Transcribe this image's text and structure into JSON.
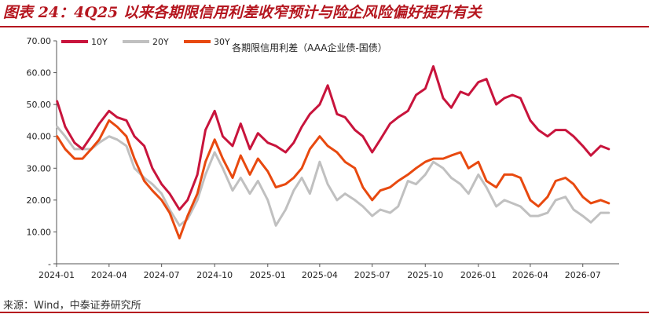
{
  "figure": {
    "title": "图表 24：4Q25 以来各期限信用利差收窄预计与险企风险偏好提升有关",
    "source": "来源：Wind，中泰证券研究所"
  },
  "colors": {
    "accent": "#b5161f",
    "10Y": "#c8143c",
    "20Y": "#c0c0c0",
    "30Y": "#e8490f"
  },
  "chart_data": {
    "type": "line",
    "title": "各期限信用利差（AAA企业债-国债）",
    "xlabel": "",
    "ylabel": "",
    "ylim": [
      0,
      70
    ],
    "yticks": [
      0,
      10,
      20,
      30,
      40,
      50,
      60,
      70
    ],
    "ytick_labels": [
      "-",
      "10.00",
      "20.00",
      "30.00",
      "40.00",
      "50.00",
      "60.00",
      "70.00"
    ],
    "xticks": [
      "2024-01",
      "2024-04",
      "2024-07",
      "2024-10",
      "2025-01",
      "2025-04",
      "2025-07",
      "2025-10",
      "2026-01",
      "2026-04",
      "2026-07"
    ],
    "x": [
      "2024-01-02",
      "2024-01-16",
      "2024-02-01",
      "2024-02-15",
      "2024-03-01",
      "2024-03-15",
      "2024-04-01",
      "2024-04-15",
      "2024-05-01",
      "2024-05-15",
      "2024-06-01",
      "2024-06-15",
      "2024-07-01",
      "2024-07-15",
      "2024-08-01",
      "2024-08-15",
      "2024-09-01",
      "2024-09-15",
      "2024-10-01",
      "2024-10-15",
      "2024-11-01",
      "2024-11-15",
      "2024-12-01",
      "2024-12-15",
      "2025-01-01",
      "2025-01-15",
      "2025-02-01",
      "2025-02-15",
      "2025-03-01",
      "2025-03-15",
      "2025-04-01",
      "2025-04-15",
      "2025-05-01",
      "2025-05-15",
      "2025-06-01",
      "2025-06-15",
      "2025-07-01",
      "2025-07-15",
      "2025-08-01",
      "2025-08-15",
      "2025-09-01",
      "2025-09-15",
      "2025-10-01",
      "2025-10-15",
      "2025-11-01",
      "2025-11-15",
      "2025-12-01",
      "2025-12-15",
      "2026-01-01",
      "2026-01-15",
      "2026-02-01",
      "2026-02-15",
      "2026-03-01",
      "2026-03-15",
      "2026-04-01",
      "2026-04-15",
      "2026-05-01",
      "2026-05-15",
      "2026-06-01",
      "2026-06-15",
      "2026-07-01",
      "2026-07-15",
      "2026-08-01",
      "2026-08-15"
    ],
    "legend_position": "top-left",
    "grid": false,
    "series": [
      {
        "name": "10Y",
        "values": [
          51,
          43,
          38,
          36,
          40,
          44,
          48,
          46,
          45,
          40,
          37,
          30,
          25,
          22,
          17,
          20,
          28,
          42,
          48,
          40,
          37,
          44,
          36,
          41,
          38,
          37,
          35,
          38,
          43,
          47,
          50,
          56,
          47,
          46,
          42,
          40,
          35,
          39,
          44,
          46,
          48,
          53,
          55,
          62,
          52,
          49,
          54,
          53,
          57,
          58,
          50,
          52,
          53,
          52,
          45,
          42,
          40,
          42,
          42,
          40,
          37,
          34,
          37,
          36
        ]
      },
      {
        "name": "20Y",
        "values": [
          43,
          40,
          36,
          36,
          36,
          38,
          40,
          39,
          37,
          30,
          27,
          25,
          22,
          17,
          12,
          14,
          20,
          28,
          35,
          30,
          23,
          27,
          22,
          26,
          20,
          12,
          17,
          23,
          27,
          22,
          32,
          25,
          20,
          22,
          20,
          18,
          15,
          17,
          16,
          18,
          26,
          25,
          28,
          32,
          30,
          27,
          25,
          22,
          28,
          24,
          18,
          20,
          19,
          18,
          15,
          15,
          16,
          20,
          21,
          17,
          15,
          13,
          16,
          16
        ]
      },
      {
        "name": "30Y",
        "values": [
          40,
          36,
          33,
          33,
          36,
          39,
          45,
          43,
          40,
          33,
          26,
          23,
          20,
          16,
          8,
          15,
          22,
          32,
          39,
          33,
          27,
          34,
          28,
          33,
          29,
          24,
          25,
          27,
          30,
          36,
          40,
          37,
          35,
          32,
          30,
          24,
          20,
          23,
          24,
          26,
          28,
          30,
          32,
          33,
          33,
          34,
          35,
          30,
          32,
          26,
          24,
          28,
          28,
          27,
          20,
          18,
          21,
          26,
          27,
          25,
          21,
          19,
          20,
          19
        ]
      }
    ]
  }
}
